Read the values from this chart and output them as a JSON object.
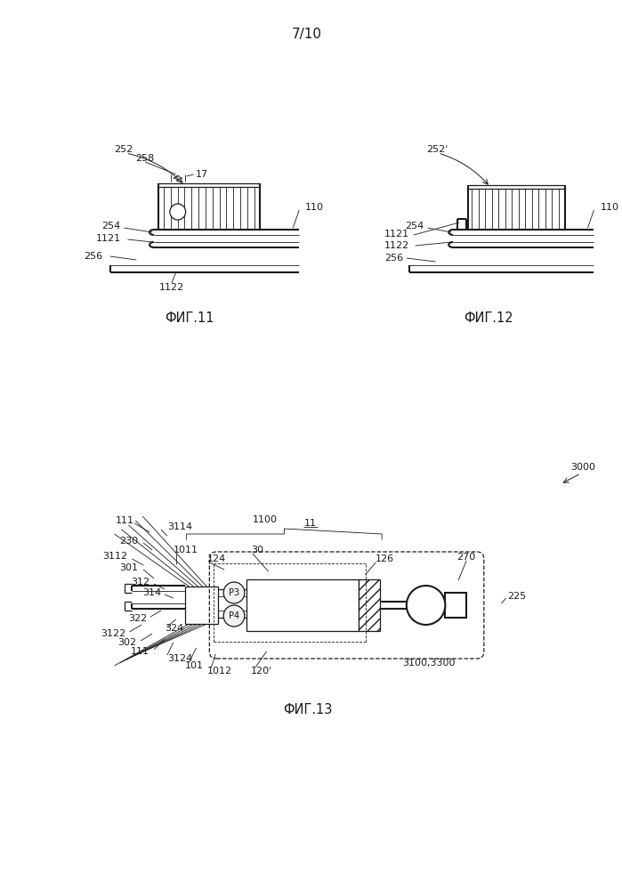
{
  "page_label": "7/10",
  "fig11_label": "ФИГ.11",
  "fig12_label": "ФИГ.12",
  "fig13_label": "ФИГ.13",
  "bg_color": "#ffffff",
  "line_color": "#1a1a1a",
  "font_size_label": 10.5,
  "font_size_annot": 8.0
}
